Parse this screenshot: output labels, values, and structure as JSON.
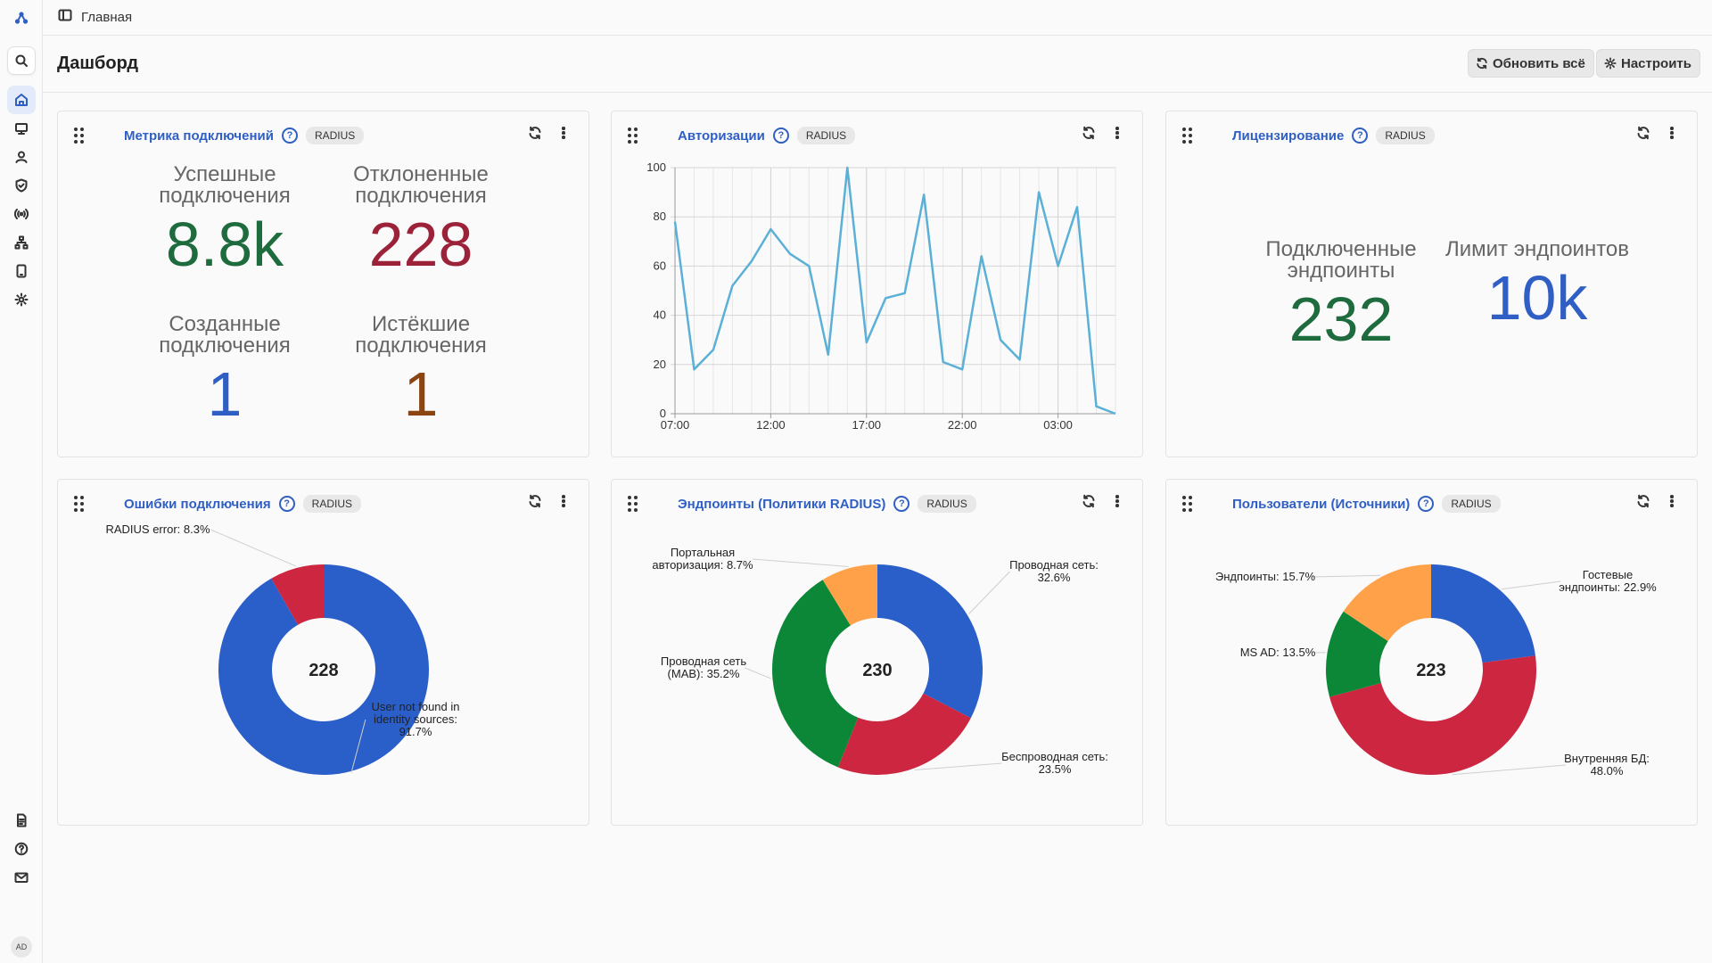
{
  "breadcrumb": "Главная",
  "page": {
    "title": "Дашборд",
    "refresh_all": "Обновить всё",
    "configure": "Настроить"
  },
  "user": {
    "initials": "AD"
  },
  "colors": {
    "accent": "#2f5fc4",
    "blue": "#2a5ec9",
    "red": "#cc2641",
    "green": "#0b8737",
    "orange": "#fea148",
    "line": "#5ab0d6"
  },
  "cards": {
    "connections": {
      "title": "Метрика подключений",
      "badge": "RADIUS",
      "metrics": [
        {
          "label": "Успешные подключения",
          "value": "8.8k"
        },
        {
          "label": "Отклоненные подключения",
          "value": "228"
        },
        {
          "label": "Созданные подключения",
          "value": "1"
        },
        {
          "label": "Истёкшие подключения",
          "value": "1"
        }
      ]
    },
    "auth": {
      "title": "Авторизации",
      "badge": "RADIUS"
    },
    "licensing": {
      "title": "Лицензирование",
      "badge": "RADIUS",
      "metrics": [
        {
          "label": "Подключенные эндпоинты",
          "value": "232"
        },
        {
          "label": "Лимит эндпоинтов",
          "value": "10k"
        }
      ]
    },
    "errors": {
      "title": "Ошибки подключения",
      "badge": "RADIUS"
    },
    "endpoints": {
      "title": "Эндпоинты (Политики RADIUS)",
      "badge": "RADIUS"
    },
    "users": {
      "title": "Пользователи (Источники)",
      "badge": "RADIUS"
    }
  },
  "chart_data": [
    {
      "type": "line",
      "title": "Авторизации",
      "x": [
        0,
        1,
        2,
        3,
        4,
        5,
        6,
        7,
        8,
        9,
        10,
        11,
        12,
        13,
        14,
        15,
        16,
        17,
        18,
        19,
        20,
        21,
        22,
        23
      ],
      "xticks": [
        {
          "at": 0,
          "label": "07:00"
        },
        {
          "at": 5,
          "label": "12:00"
        },
        {
          "at": 10,
          "label": "17:00"
        },
        {
          "at": 15,
          "label": "22:00"
        },
        {
          "at": 20,
          "label": "03:00"
        }
      ],
      "values": [
        78,
        18,
        26,
        52,
        62,
        75,
        65,
        60,
        24,
        100,
        29,
        47,
        49,
        89,
        21,
        18,
        64,
        30,
        22,
        90,
        60,
        84,
        3,
        0
      ],
      "ylim": [
        0,
        100
      ],
      "yticks": [
        0,
        20,
        40,
        60,
        80,
        100
      ],
      "grid": true
    },
    {
      "type": "pie",
      "title": "Ошибки подключения",
      "total": "228",
      "slices": [
        {
          "name": "User not found in identity sources",
          "label": [
            "User not found in",
            "identity sources:",
            "91.7%"
          ],
          "value": 91.7,
          "color": "#2a5ec9"
        },
        {
          "name": "RADIUS error",
          "label": [
            "RADIUS error: 8.3%"
          ],
          "value": 8.3,
          "color": "#cc2641"
        }
      ]
    },
    {
      "type": "pie",
      "title": "Эндпоинты (Политики RADIUS)",
      "total": "230",
      "slices": [
        {
          "name": "Проводная сеть",
          "label": [
            "Проводная сеть:",
            "32.6%"
          ],
          "value": 32.6,
          "color": "#2a5ec9"
        },
        {
          "name": "Беспроводная сеть",
          "label": [
            "Беспроводная сеть:",
            "23.5%"
          ],
          "value": 23.5,
          "color": "#cc2641"
        },
        {
          "name": "Проводная сеть (MAB)",
          "label": [
            "Проводная сеть",
            "(MAB): 35.2%"
          ],
          "value": 35.2,
          "color": "#0b8737"
        },
        {
          "name": "Портальная авторизация",
          "label": [
            "Портальная",
            "авторизация: 8.7%"
          ],
          "value": 8.7,
          "color": "#fea148"
        }
      ]
    },
    {
      "type": "pie",
      "title": "Пользователи (Источники)",
      "total": "223",
      "slices": [
        {
          "name": "Гостевые эндпоинты",
          "label": [
            "Гостевые",
            "эндпоинты: 22.9%"
          ],
          "value": 22.9,
          "color": "#2a5ec9"
        },
        {
          "name": "Внутренняя БД",
          "label": [
            "Внутренняя БД:",
            "48.0%"
          ],
          "value": 48.0,
          "color": "#cc2641"
        },
        {
          "name": "MS AD",
          "label": [
            "MS AD: 13.5%"
          ],
          "value": 13.5,
          "color": "#0b8737"
        },
        {
          "name": "Эндпоинты",
          "label": [
            "Эндпоинты: 15.7%"
          ],
          "value": 15.7,
          "color": "#fea148"
        }
      ]
    }
  ]
}
